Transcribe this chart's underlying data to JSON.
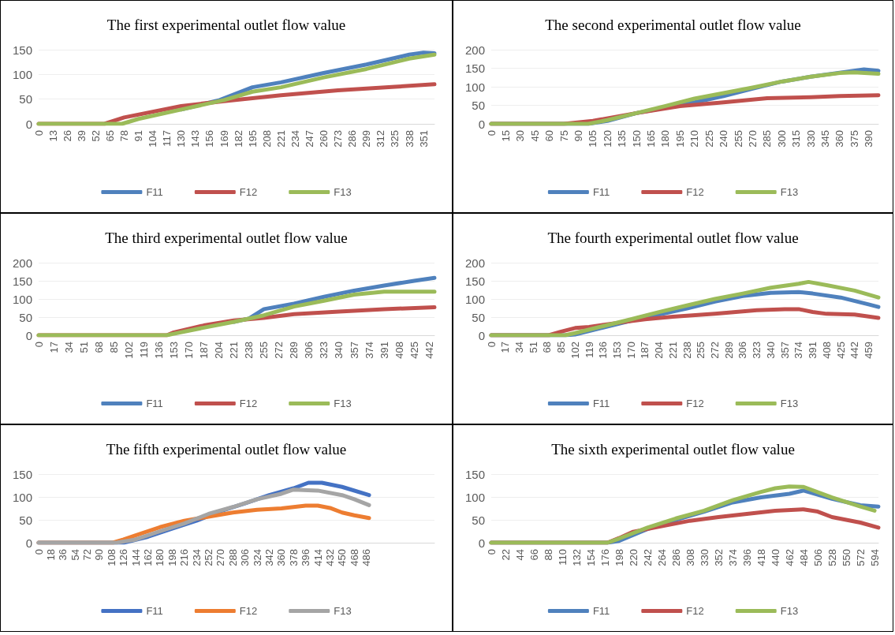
{
  "chart_data": [
    {
      "type": "line",
      "title": "The first experimental outlet flow value",
      "legend": "bottom",
      "grid": "y",
      "xlim": [
        0,
        361
      ],
      "ylim": [
        0,
        150
      ],
      "yticks": [
        0,
        50,
        100,
        150
      ],
      "xticks": [
        0,
        13,
        26,
        39,
        52,
        65,
        78,
        91,
        104,
        117,
        130,
        143,
        156,
        169,
        182,
        195,
        208,
        221,
        234,
        247,
        260,
        273,
        286,
        299,
        312,
        325,
        338,
        351
      ],
      "series": [
        {
          "name": "F11",
          "color": "#4f81bd",
          "x": [
            130,
            165,
            195,
            221,
            260,
            299,
            338,
            351,
            361
          ],
          "values": [
            29,
            48,
            74,
            84,
            103,
            120,
            140,
            144,
            143
          ]
        },
        {
          "name": "F12",
          "color": "#c0504d",
          "x": [
            0,
            60,
            78,
            130,
            169,
            221,
            273,
            325,
            361
          ],
          "values": [
            0,
            0,
            13,
            36,
            46,
            58,
            68,
            75,
            80
          ]
        },
        {
          "name": "F13",
          "color": "#9bbb59",
          "x": [
            0,
            76,
            91,
            130,
            169,
            195,
            221,
            260,
            299,
            338,
            361
          ],
          "values": [
            0,
            0,
            10,
            29,
            48,
            65,
            74,
            94,
            111,
            132,
            140
          ]
        }
      ]
    },
    {
      "type": "line",
      "title": "The second experimental outlet flow value",
      "legend": "bottom",
      "grid": "y",
      "xlim": [
        0,
        400
      ],
      "ylim": [
        0,
        200
      ],
      "yticks": [
        0,
        50,
        100,
        150,
        200
      ],
      "xticks": [
        0,
        15,
        30,
        45,
        60,
        75,
        90,
        105,
        120,
        135,
        150,
        165,
        180,
        195,
        210,
        225,
        240,
        255,
        270,
        285,
        300,
        315,
        330,
        345,
        360,
        375,
        390
      ],
      "series": [
        {
          "name": "F11",
          "color": "#4f81bd",
          "x": [
            0,
            100,
            120,
            150,
            210,
            240,
            270,
            300,
            330,
            360,
            385,
            400
          ],
          "values": [
            0,
            0,
            8,
            29,
            58,
            75,
            95,
            114,
            127,
            138,
            147,
            143
          ]
        },
        {
          "name": "F12",
          "color": "#c0504d",
          "x": [
            0,
            75,
            105,
            150,
            195,
            240,
            285,
            330,
            360,
            400
          ],
          "values": [
            0,
            0,
            8,
            29,
            48,
            58,
            69,
            72,
            75,
            77
          ]
        },
        {
          "name": "F13",
          "color": "#9bbb59",
          "x": [
            0,
            100,
            120,
            150,
            180,
            210,
            240,
            270,
            300,
            330,
            360,
            375,
            400
          ],
          "values": [
            0,
            0,
            10,
            29,
            48,
            68,
            83,
            98,
            114,
            127,
            137,
            139,
            135
          ]
        }
      ]
    },
    {
      "type": "line",
      "title": "The third experimental outlet flow value",
      "legend": "bottom",
      "grid": "y",
      "xlim": [
        0,
        448
      ],
      "ylim": [
        0,
        200
      ],
      "yticks": [
        0,
        50,
        100,
        150,
        200
      ],
      "xticks": [
        0,
        17,
        34,
        51,
        68,
        85,
        102,
        119,
        136,
        153,
        170,
        187,
        204,
        221,
        238,
        255,
        272,
        289,
        306,
        323,
        340,
        357,
        374,
        391,
        408,
        425,
        442
      ],
      "series": [
        {
          "name": "F11",
          "color": "#4f81bd",
          "x": [
            221,
            238,
            255,
            289,
            323,
            357,
            391,
            425,
            448
          ],
          "values": [
            37,
            46,
            72,
            87,
            106,
            123,
            137,
            150,
            158
          ]
        },
        {
          "name": "F12",
          "color": "#c0504d",
          "x": [
            0,
            145,
            153,
            187,
            221,
            255,
            289,
            340,
            391,
            448
          ],
          "values": [
            0,
            0,
            8,
            27,
            41,
            48,
            58,
            65,
            72,
            77
          ]
        },
        {
          "name": "F13",
          "color": "#9bbb59",
          "x": [
            0,
            145,
            153,
            187,
            221,
            255,
            289,
            323,
            357,
            391,
            448
          ],
          "values": [
            0,
            0,
            4,
            21,
            37,
            55,
            79,
            95,
            112,
            120,
            120
          ]
        }
      ]
    },
    {
      "type": "line",
      "title": "The fourth experimental outlet flow value",
      "legend": "bottom",
      "grid": "y",
      "xlim": [
        0,
        471
      ],
      "ylim": [
        0,
        200
      ],
      "yticks": [
        0,
        50,
        100,
        150,
        200
      ],
      "xticks": [
        0,
        17,
        34,
        51,
        68,
        85,
        102,
        119,
        136,
        153,
        170,
        187,
        204,
        221,
        238,
        255,
        272,
        289,
        306,
        323,
        340,
        357,
        374,
        391,
        408,
        425,
        442,
        459
      ],
      "series": [
        {
          "name": "F11",
          "color": "#4f81bd",
          "x": [
            0,
            90,
            102,
            136,
            170,
            204,
            238,
            272,
            306,
            340,
            374,
            391,
            425,
            459,
            471
          ],
          "values": [
            0,
            0,
            2,
            21,
            40,
            57,
            74,
            93,
            108,
            117,
            119,
            115,
            104,
            85,
            78
          ]
        },
        {
          "name": "F12",
          "color": "#c0504d",
          "x": [
            0,
            70,
            85,
            102,
            119,
            153,
            187,
            221,
            272,
            323,
            357,
            374,
            391,
            408,
            442,
            471
          ],
          "values": [
            0,
            0,
            10,
            20,
            23,
            34,
            44,
            51,
            59,
            69,
            72,
            72,
            64,
            59,
            57,
            48
          ]
        },
        {
          "name": "F13",
          "color": "#9bbb59",
          "x": [
            0,
            90,
            102,
            136,
            170,
            204,
            238,
            272,
            306,
            340,
            374,
            386,
            408,
            442,
            471
          ],
          "values": [
            0,
            0,
            6,
            25,
            44,
            64,
            82,
            100,
            115,
            131,
            142,
            147,
            138,
            123,
            104
          ]
        }
      ]
    },
    {
      "type": "line",
      "title": "The fifth experimental outlet flow value",
      "legend": "bottom",
      "grid": "y",
      "xlim": [
        0,
        587
      ],
      "ylim": [
        0,
        150
      ],
      "yticks": [
        0,
        50,
        100,
        150
      ],
      "xticks": [
        0,
        18,
        36,
        54,
        72,
        90,
        108,
        126,
        144,
        162,
        180,
        198,
        216,
        234,
        252,
        270,
        288,
        306,
        324,
        342,
        360,
        378,
        396,
        414,
        432,
        450,
        468,
        486
      ],
      "series": [
        {
          "name": "F11",
          "color": "#4472c4",
          "x": [
            0,
            126,
            162,
            198,
            234,
            270,
            306,
            342,
            378,
            400,
            420,
            450,
            490
          ],
          "values": [
            0,
            0,
            13,
            31,
            48,
            69,
            86,
            104,
            119,
            131,
            131,
            122,
            104
          ]
        },
        {
          "name": "F12",
          "color": "#ed7d31",
          "x": [
            0,
            110,
            126,
            144,
            180,
            216,
            252,
            288,
            324,
            360,
            396,
            414,
            432,
            450,
            468,
            490
          ],
          "values": [
            0,
            0,
            7,
            16,
            34,
            48,
            57,
            66,
            72,
            75,
            81,
            81,
            76,
            66,
            60,
            54
          ]
        },
        {
          "name": "F13",
          "color": "#a5a5a5",
          "x": [
            0,
            115,
            144,
            180,
            216,
            252,
            288,
            324,
            360,
            378,
            414,
            450,
            468,
            490
          ],
          "values": [
            0,
            0,
            7,
            25,
            42,
            63,
            78,
            95,
            107,
            116,
            114,
            104,
            95,
            82
          ]
        }
      ]
    },
    {
      "type": "line",
      "title": "The sixth experimental outlet flow value",
      "legend": "bottom",
      "grid": "y",
      "xlim": [
        0,
        600
      ],
      "ylim": [
        0,
        150
      ],
      "yticks": [
        0,
        50,
        100,
        150
      ],
      "xticks": [
        0,
        22,
        44,
        66,
        88,
        110,
        132,
        154,
        176,
        198,
        220,
        242,
        264,
        286,
        308,
        330,
        352,
        374,
        396,
        418,
        440,
        462,
        484,
        506,
        528,
        550,
        572,
        594
      ],
      "series": [
        {
          "name": "F11",
          "color": "#4f81bd",
          "x": [
            0,
            180,
            198,
            242,
            286,
            330,
            374,
            418,
            462,
            484,
            528,
            572,
            600
          ],
          "values": [
            0,
            0,
            4,
            30,
            50,
            68,
            88,
            99,
            107,
            114,
            96,
            82,
            79
          ]
        },
        {
          "name": "F12",
          "color": "#c0504d",
          "x": [
            0,
            180,
            198,
            220,
            264,
            308,
            352,
            396,
            440,
            484,
            506,
            528,
            572,
            600
          ],
          "values": [
            0,
            0,
            10,
            24,
            36,
            48,
            56,
            63,
            70,
            73,
            68,
            56,
            44,
            33
          ]
        },
        {
          "name": "F13",
          "color": "#9bbb59",
          "x": [
            0,
            180,
            198,
            242,
            286,
            330,
            374,
            418,
            440,
            462,
            484,
            528,
            572,
            594
          ],
          "values": [
            0,
            0,
            9,
            33,
            53,
            70,
            93,
            111,
            119,
            123,
            122,
            99,
            79,
            70
          ]
        }
      ]
    }
  ]
}
